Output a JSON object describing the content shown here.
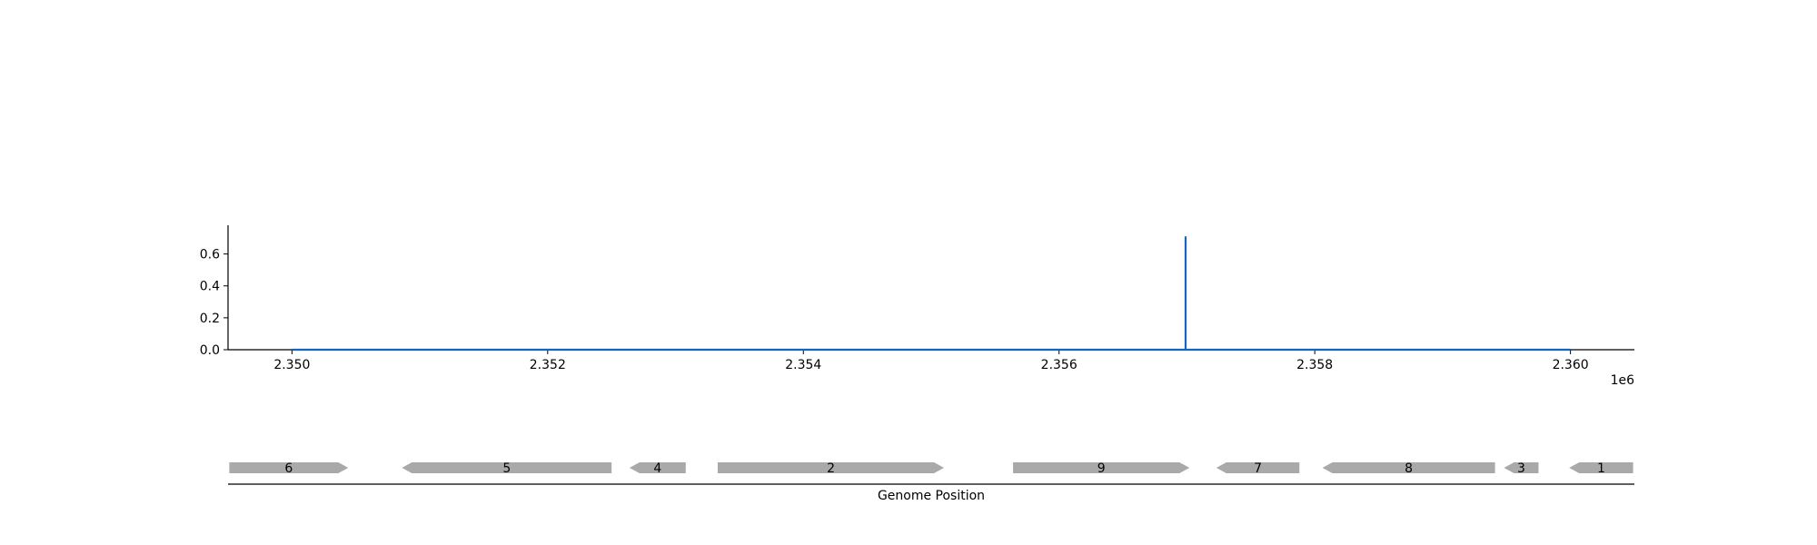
{
  "colors": {
    "line": "#1565c0",
    "gene_fill": "#a9a9a9",
    "axis": "#000000",
    "background": "#ffffff"
  },
  "chart_data": [
    {
      "type": "line",
      "title": "",
      "xlabel": "",
      "ylabel": "",
      "x_offset_label": "1e6",
      "xlim": [
        2349500,
        2360500
      ],
      "ylim": [
        0,
        0.78
      ],
      "x_ticks": [
        2350000,
        2352000,
        2354000,
        2356000,
        2358000,
        2360000
      ],
      "x_tick_labels": [
        "2.350",
        "2.352",
        "2.354",
        "2.356",
        "2.358",
        "2.360"
      ],
      "y_ticks": [
        0.0,
        0.2,
        0.4,
        0.6
      ],
      "y_tick_labels": [
        "0.0",
        "0.2",
        "0.4",
        "0.6"
      ],
      "grid": false,
      "series": [
        {
          "x": [
            2350000,
            2356990,
            2356990,
            2356990,
            2356990,
            2360000
          ],
          "y": [
            0.0,
            0.0,
            0.71,
            0.71,
            0.0,
            0.0
          ]
        }
      ]
    },
    {
      "type": "gene_track",
      "xlabel": "Genome Position",
      "xlim": [
        2349500,
        2360500
      ],
      "genes": [
        {
          "label": "6",
          "start": 2349510,
          "end": 2350440,
          "strand": "+"
        },
        {
          "label": "5",
          "start": 2350860,
          "end": 2352500,
          "strand": "-"
        },
        {
          "label": "4",
          "start": 2352640,
          "end": 2353080,
          "strand": "-"
        },
        {
          "label": "2",
          "start": 2353330,
          "end": 2355100,
          "strand": "+"
        },
        {
          "label": "9",
          "start": 2355640,
          "end": 2357020,
          "strand": "+"
        },
        {
          "label": "7",
          "start": 2357230,
          "end": 2357880,
          "strand": "-"
        },
        {
          "label": "8",
          "start": 2358060,
          "end": 2359410,
          "strand": "-"
        },
        {
          "label": "3",
          "start": 2359480,
          "end": 2359750,
          "strand": "-"
        },
        {
          "label": "1",
          "start": 2359990,
          "end": 2360490,
          "strand": "-"
        }
      ]
    }
  ]
}
